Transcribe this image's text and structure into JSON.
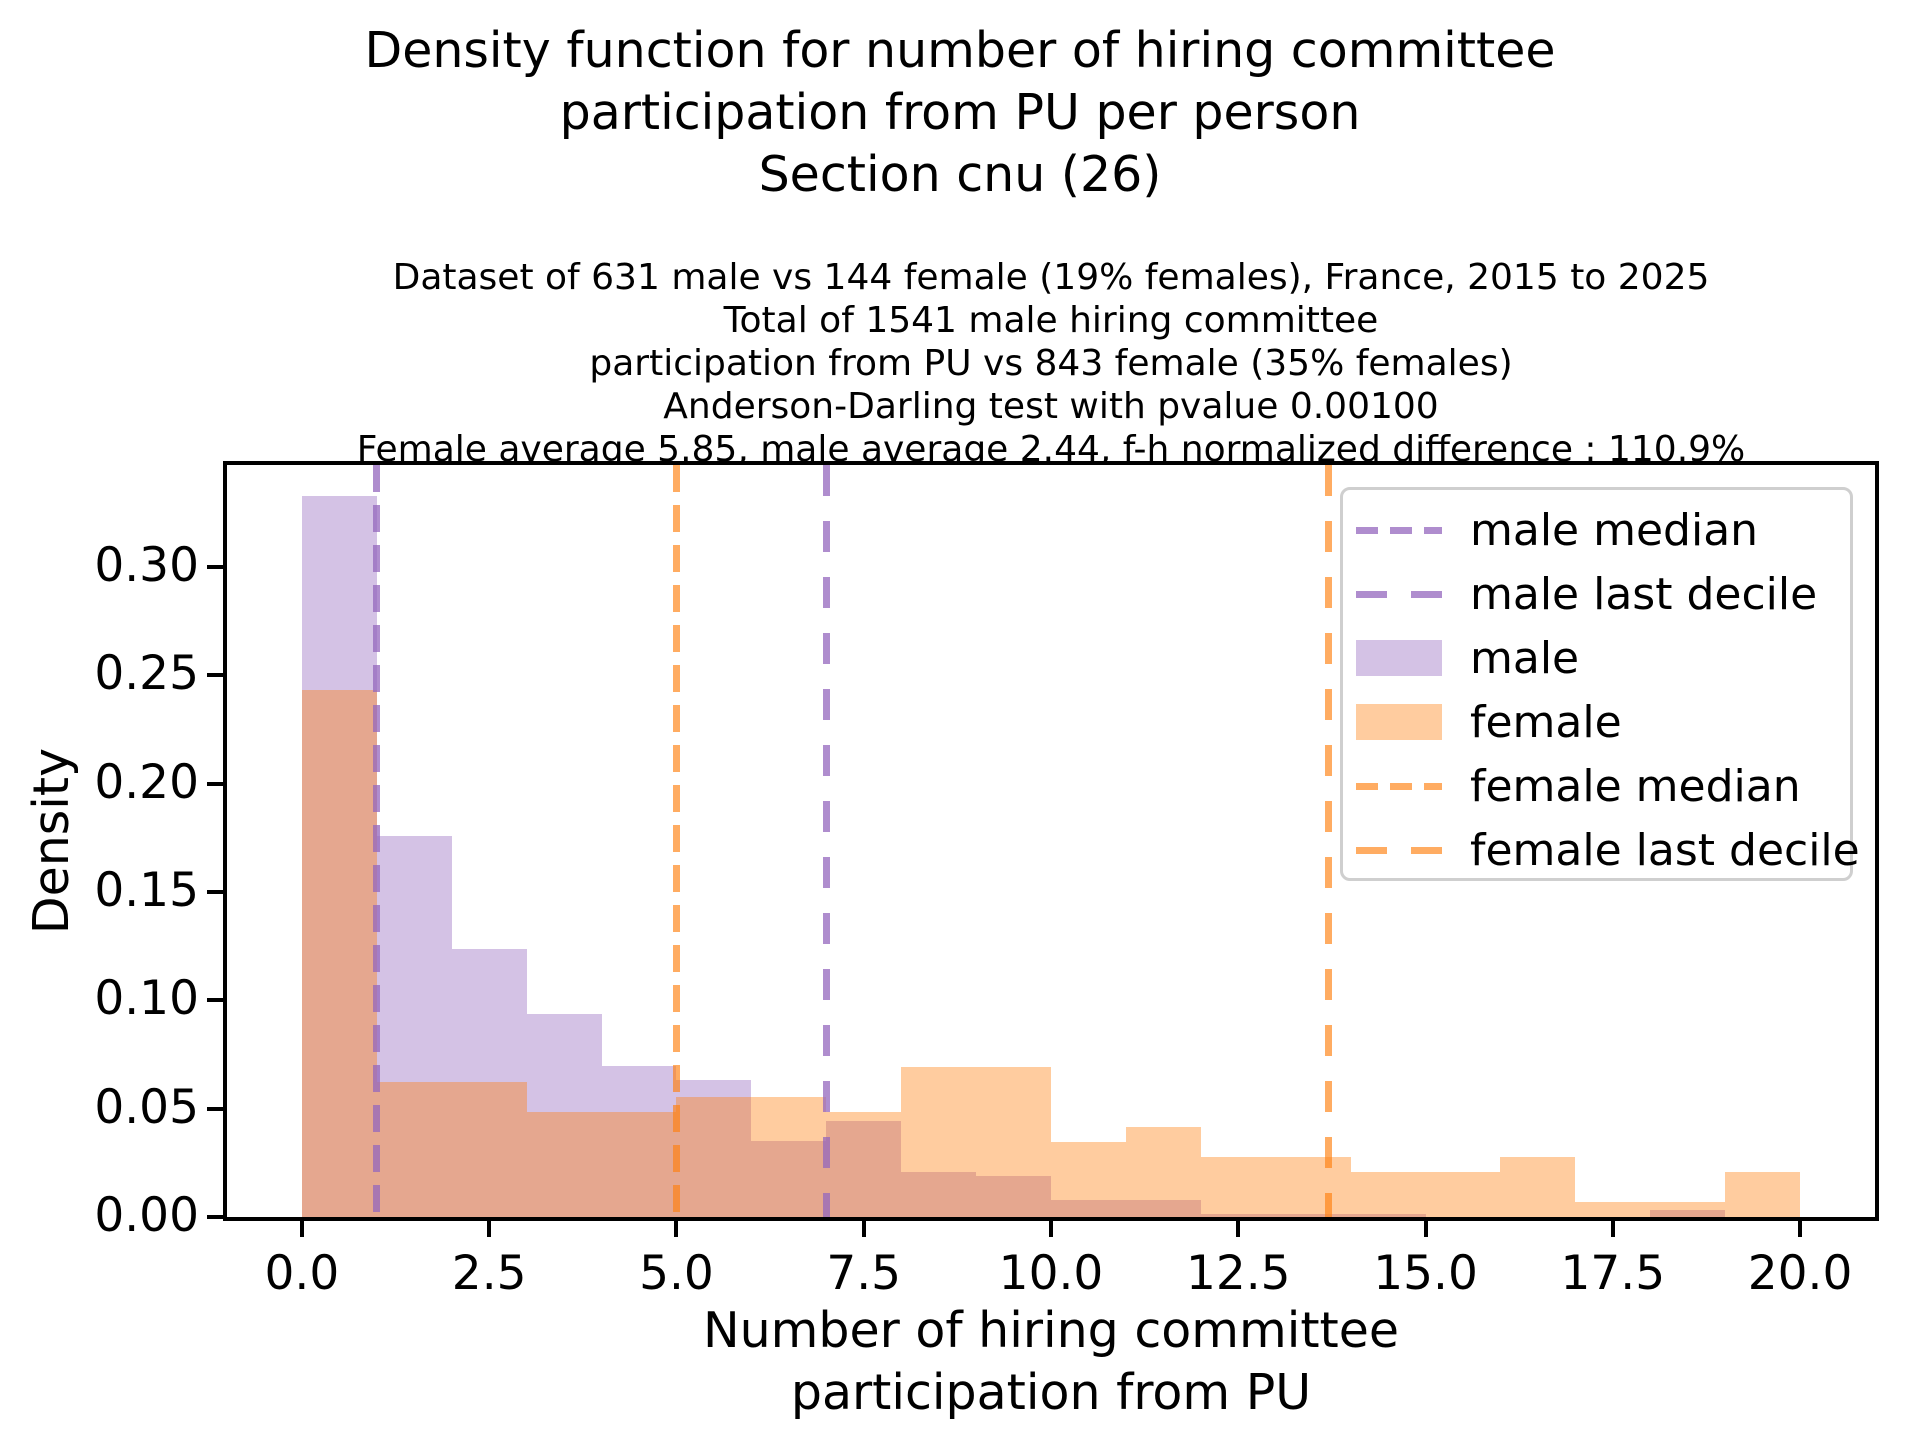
{
  "figure": {
    "title_lines": [
      "Density function for number of hiring committee",
      "participation from PU per person",
      "Section cnu (26)"
    ],
    "subtitle_lines": [
      "Dataset of 631 male vs 144 female (19% females), France, 2015 to 2025",
      "Total of 1541 male hiring committee",
      "participation from PU vs 843 female (35% females)",
      "Anderson-Darling test with pvalue 0.00100",
      "Female average 5.85, male average 2.44, f-h normalized difference : 110.9%"
    ],
    "xlabel_lines": [
      "Number of hiring committee",
      "participation from PU"
    ],
    "ylabel": "Density"
  },
  "chart_data": {
    "type": "histogram",
    "mode": "density",
    "title": "Density function for number of hiring committee participation from PU per person, Section cnu (26)",
    "xlabel": "Number of hiring committee participation from PU",
    "ylabel": "Density",
    "bin_start": 0,
    "bin_width": 1,
    "xlim": [
      -1,
      21
    ],
    "ylim": [
      0,
      0.347
    ],
    "grid": false,
    "legend_position": "upper right",
    "x_ticks": [
      {
        "value": 0,
        "label": "0.0"
      },
      {
        "value": 2.5,
        "label": "2.5"
      },
      {
        "value": 5,
        "label": "5.0"
      },
      {
        "value": 7.5,
        "label": "7.5"
      },
      {
        "value": 10,
        "label": "10.0"
      },
      {
        "value": 12.5,
        "label": "12.5"
      },
      {
        "value": 15,
        "label": "15.0"
      },
      {
        "value": 17.5,
        "label": "17.5"
      },
      {
        "value": 20,
        "label": "20.0"
      }
    ],
    "y_ticks": [
      {
        "value": 0.0,
        "label": "0.00"
      },
      {
        "value": 0.05,
        "label": "0.05"
      },
      {
        "value": 0.1,
        "label": "0.10"
      },
      {
        "value": 0.15,
        "label": "0.15"
      },
      {
        "value": 0.2,
        "label": "0.20"
      },
      {
        "value": 0.25,
        "label": "0.25"
      },
      {
        "value": 0.3,
        "label": "0.30"
      }
    ],
    "series": [
      {
        "name": "male",
        "fill_color": "rgba(148,103,189,0.4)",
        "line_color": "rgba(148,103,189,0.75)",
        "densities": [
          0.3328,
          0.1759,
          0.1236,
          0.0935,
          0.0697,
          0.0634,
          0.0349,
          0.0444,
          0.0206,
          0.019,
          0.0079,
          0.0079,
          0.0016,
          0.0016,
          0.0016,
          0,
          0,
          0,
          0.0032,
          0
        ],
        "median": 1.0,
        "last_decile": 7.0
      },
      {
        "name": "female",
        "fill_color": "rgba(255,127,14,0.4)",
        "line_color": "rgba(255,127,14,0.65)",
        "densities": [
          0.2431,
          0.0625,
          0.0625,
          0.0486,
          0.0486,
          0.0556,
          0.0556,
          0.0486,
          0.0694,
          0.0694,
          0.0347,
          0.0417,
          0.0278,
          0.0278,
          0.0208,
          0.0208,
          0.0278,
          0.0069,
          0.0069,
          0.0208
        ],
        "median": 5.0,
        "last_decile": 13.7
      }
    ],
    "legend_entries": [
      {
        "label": "male median",
        "swatch": "dash-median",
        "color": "rgba(148,103,189,0.75)"
      },
      {
        "label": "male last decile",
        "swatch": "dash-decile",
        "color": "rgba(148,103,189,0.75)"
      },
      {
        "label": "male",
        "swatch": "patch",
        "color": "rgba(148,103,189,0.4)"
      },
      {
        "label": "female",
        "swatch": "patch",
        "color": "rgba(255,127,14,0.4)"
      },
      {
        "label": "female median",
        "swatch": "dash-median",
        "color": "rgba(255,127,14,0.65)"
      },
      {
        "label": "female last decile",
        "swatch": "dash-decile",
        "color": "rgba(255,127,14,0.65)"
      }
    ]
  }
}
